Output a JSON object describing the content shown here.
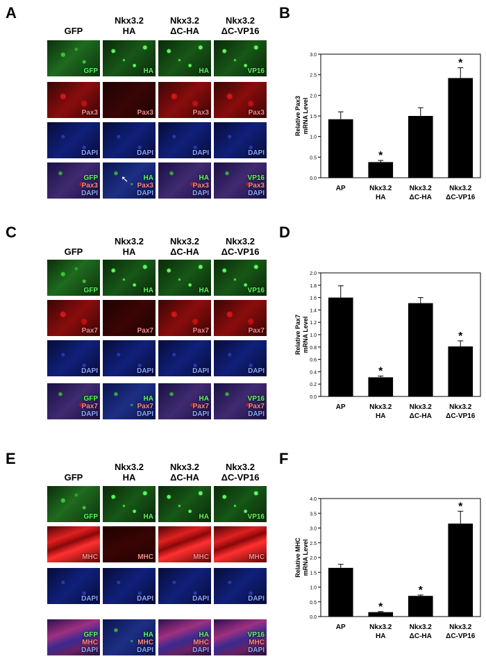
{
  "panels": [
    "A",
    "B",
    "C",
    "D",
    "E",
    "F"
  ],
  "column_headers": [
    {
      "line1": "GFP",
      "line2": ""
    },
    {
      "line1": "Nkx3.2",
      "line2": "HA"
    },
    {
      "line1": "Nkx3.2",
      "line2": "ΔC-HA"
    },
    {
      "line1": "Nkx3.2",
      "line2": "ΔC-VP16"
    }
  ],
  "image_rows": {
    "A": [
      [
        "GFP",
        "HA",
        "HA",
        "VP16"
      ],
      [
        "Pax3",
        "Pax3",
        "Pax3",
        "Pax3"
      ],
      [
        "DAPI",
        "DAPI",
        "DAPI",
        "DAPI"
      ],
      [
        [
          "GFP",
          "Pax3",
          "DAPI"
        ],
        [
          "HA",
          "Pax3",
          "DAPI"
        ],
        [
          "HA",
          "Pax3",
          "DAPI"
        ],
        [
          "VP16",
          "Pax3",
          "DAPI"
        ]
      ]
    ],
    "C": [
      [
        "GFP",
        "HA",
        "HA",
        "VP16"
      ],
      [
        "Pax7",
        "Pax7",
        "Pax7",
        "Pax7"
      ],
      [
        "DAPI",
        "DAPI",
        "DAPI",
        "DAPI"
      ],
      [
        [
          "GFP",
          "Pax7",
          "DAPI"
        ],
        [
          "HA",
          "Pax7",
          "DAPI"
        ],
        [
          "HA",
          "Pax7",
          "DAPI"
        ],
        [
          "VP16",
          "Pax7",
          "DAPI"
        ]
      ]
    ],
    "E": [
      [
        "GFP",
        "HA",
        "HA",
        "VP16"
      ],
      [
        "MHC",
        "MHC",
        "MHC",
        "MHC"
      ],
      [
        "DAPI",
        "DAPI",
        "DAPI",
        "DAPI"
      ],
      [
        [
          "GFP",
          "MHC",
          "DAPI"
        ],
        [
          "HA",
          "MHC",
          "DAPI"
        ],
        [
          "HA",
          "MHC",
          "DAPI"
        ],
        [
          "VP16",
          "MHC",
          "DAPI"
        ]
      ]
    ]
  },
  "chart_data": [
    {
      "panel": "B",
      "type": "bar",
      "categories": [
        [
          "AP"
        ],
        [
          "Nkx3.2",
          "HA"
        ],
        [
          "Nkx3.2",
          "ΔC-HA"
        ],
        [
          "Nkx3.2",
          "ΔC-VP16"
        ]
      ],
      "values": [
        1.42,
        0.38,
        1.5,
        2.42
      ],
      "errors": [
        0.18,
        0.04,
        0.2,
        0.25
      ],
      "significant": [
        false,
        true,
        false,
        true
      ],
      "ylabel": [
        "Relative Pax3",
        "mRNA Level"
      ],
      "ylim": [
        0,
        3.0
      ],
      "yticks": [
        "0.0",
        "0.5",
        "1.0",
        "1.5",
        "2.0",
        "2.5",
        "3.0"
      ],
      "ytick_values": [
        0,
        0.5,
        1.0,
        1.5,
        2.0,
        2.5,
        3.0
      ]
    },
    {
      "panel": "D",
      "type": "bar",
      "categories": [
        [
          "AP"
        ],
        [
          "Nkx3.2",
          "HA"
        ],
        [
          "Nkx3.2",
          "ΔC-HA"
        ],
        [
          "Nkx3.2",
          "ΔC-VP16"
        ]
      ],
      "values": [
        1.6,
        0.31,
        1.51,
        0.81
      ],
      "errors": [
        0.19,
        0.02,
        0.09,
        0.09
      ],
      "significant": [
        false,
        true,
        false,
        true
      ],
      "ylabel": [
        "Relative Pax7",
        "mRNA Level"
      ],
      "ylim": [
        0,
        2.0
      ],
      "yticks": [
        "0.0",
        "0.2",
        "0.4",
        "0.6",
        "0.8",
        "1.0",
        "1.2",
        "1.4",
        "1.6",
        "1.8",
        "2.0"
      ],
      "ytick_values": [
        0,
        0.2,
        0.4,
        0.6,
        0.8,
        1.0,
        1.2,
        1.4,
        1.6,
        1.8,
        2.0
      ]
    },
    {
      "panel": "F",
      "type": "bar",
      "categories": [
        [
          "AP"
        ],
        [
          "Nkx3.2",
          "HA"
        ],
        [
          "Nkx3.2",
          "ΔC-HA"
        ],
        [
          "Nkx3.2",
          "ΔC-VP16"
        ]
      ],
      "values": [
        1.65,
        0.15,
        0.7,
        3.15
      ],
      "errors": [
        0.12,
        0.02,
        0.03,
        0.42
      ],
      "significant": [
        false,
        true,
        true,
        true
      ],
      "ylabel": [
        "Relative MHC",
        "mRNA Level"
      ],
      "ylim": [
        0,
        4.0
      ],
      "yticks": [
        "0.0",
        "0.5",
        "1.0",
        "1.5",
        "2.0",
        "2.5",
        "3.0",
        "3.5",
        "4.0"
      ],
      "ytick_values": [
        0,
        0.5,
        1.0,
        1.5,
        2.0,
        2.5,
        3.0,
        3.5,
        4.0
      ]
    }
  ],
  "significance_mark": "*"
}
